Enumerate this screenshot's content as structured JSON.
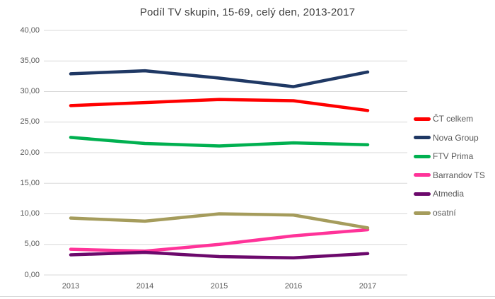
{
  "chart_data": {
    "type": "line",
    "title": "Podíl TV skupin, 15-69, celý den, 2013-2017",
    "x": [
      2013,
      2014,
      2015,
      2016,
      2017
    ],
    "x_tick_labels": [
      "2013",
      "2014",
      "2015",
      "2016",
      "2017"
    ],
    "y_ticks": [
      "40,00",
      "35,00",
      "30,00",
      "25,00",
      "20,00",
      "15,00",
      "10,00",
      "5,00",
      "0,00"
    ],
    "y_tick_values": [
      40,
      35,
      30,
      25,
      20,
      15,
      10,
      5,
      0
    ],
    "ylim": [
      0,
      40
    ],
    "grid": true,
    "legend_position": "right",
    "series": [
      {
        "name": "ČT celkem",
        "color": "#FF0000",
        "values": [
          27.7,
          28.2,
          28.7,
          28.5,
          26.9
        ]
      },
      {
        "name": "Nova Group",
        "color": "#1F3864",
        "values": [
          32.9,
          33.4,
          32.2,
          30.8,
          33.2
        ]
      },
      {
        "name": "FTV Prima",
        "color": "#00B050",
        "values": [
          22.5,
          21.5,
          21.1,
          21.6,
          21.3
        ]
      },
      {
        "name": "Barrandov TS",
        "color": "#FF3399",
        "values": [
          4.2,
          3.9,
          5.0,
          6.4,
          7.4
        ]
      },
      {
        "name": "Atmedia",
        "color": "#6C096C",
        "values": [
          3.3,
          3.7,
          3.0,
          2.8,
          3.5
        ]
      },
      {
        "name": "osatní",
        "color": "#A59C5C",
        "values": [
          9.3,
          8.8,
          10.0,
          9.8,
          7.7
        ]
      }
    ]
  },
  "style": {
    "grid_color": "#D9D9D9",
    "title_color": "#404040",
    "tick_color": "#595959",
    "legend_text_color": "#595959",
    "background": "#FFFFFF",
    "line_width": 4.5
  }
}
